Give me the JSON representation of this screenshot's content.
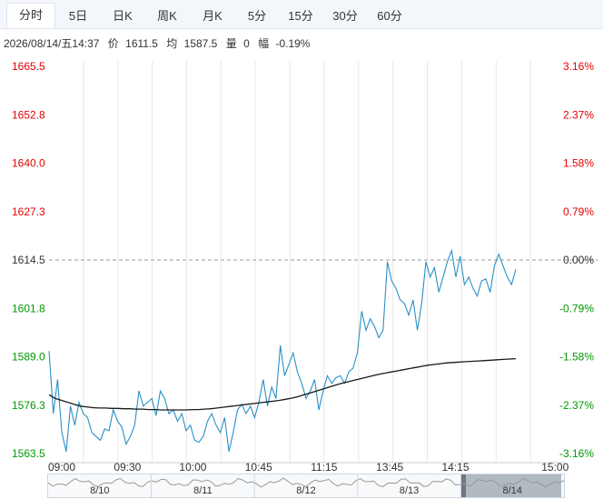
{
  "tabs": [
    {
      "label": "分时",
      "active": true
    },
    {
      "label": "5日",
      "active": false
    },
    {
      "label": "日K",
      "active": false
    },
    {
      "label": "周K",
      "active": false
    },
    {
      "label": "月K",
      "active": false
    },
    {
      "label": "5分",
      "active": false
    },
    {
      "label": "15分",
      "active": false
    },
    {
      "label": "30分",
      "active": false
    },
    {
      "label": "60分",
      "active": false
    }
  ],
  "info": {
    "datetime": "2026/08/14/五14:37",
    "price_label": "价",
    "price": "1611.5",
    "avg_label": "均",
    "avg": "1587.5",
    "volume_label": "量",
    "volume": "0",
    "change_label": "幅",
    "change": "-0.19%"
  },
  "colors": {
    "up": "#e60000",
    "down": "#009900",
    "price_line": "#2a8fc7",
    "avg_line": "#1a1a1a",
    "grid": "#e8e8e8"
  },
  "chart_data": {
    "type": "line",
    "y_ticks": [
      "1665.5",
      "1652.8",
      "1640.0",
      "1627.3",
      "1614.5",
      "1601.8",
      "1589.0",
      "1576.3",
      "1563.5"
    ],
    "pct_ticks": [
      "3.16%",
      "2.37%",
      "1.58%",
      "0.79%",
      "0.00%",
      "-0.79%",
      "-1.58%",
      "-2.37%",
      "-3.16%"
    ],
    "ylim": [
      1563.5,
      1665.5
    ],
    "prev_close": 1614.5,
    "x_ticks": [
      "09:00",
      "09:30",
      "10:00",
      "10:45",
      "11:15",
      "13:45",
      "14:15",
      "15:00"
    ],
    "series": [
      {
        "values": [
          1590.5,
          1574.0,
          1583.0,
          1569.0,
          1564.0,
          1576.0,
          1571.0,
          1577.0,
          1574.0,
          1573.0,
          1569.0,
          1568.0,
          1567.0,
          1570.0,
          1569.5,
          1575.0,
          1572.0,
          1570.5,
          1566.0,
          1568.0,
          1571.0,
          1580.0,
          1576.0,
          1577.0,
          1578.0,
          1573.5,
          1580.0,
          1578.0,
          1574.0,
          1575.0,
          1572.0,
          1574.0,
          1569.5,
          1571.0,
          1567.0,
          1566.5,
          1568.0,
          1572.0,
          1574.0,
          1571.0,
          1569.0,
          1573.0,
          1564.0,
          1569.0,
          1575.0,
          1576.5,
          1574.0,
          1576.0,
          1573.0,
          1577.0,
          1583.0,
          1576.0,
          1581.0,
          1578.0,
          1592.0,
          1584.0,
          1587.0,
          1590.0,
          1585.0,
          1582.0,
          1578.0,
          1580.0,
          1583.0,
          1575.0,
          1580.0,
          1584.0,
          1582.0,
          1583.5,
          1584.0,
          1582.0,
          1585.0,
          1586.0,
          1590.0,
          1601.0,
          1596.0,
          1599.0,
          1597.0,
          1594.0,
          1596.0,
          1614.0,
          1609.0,
          1607.0,
          1604.0,
          1603.0,
          1600.0,
          1604.0,
          1596.0,
          1603.0,
          1614.0,
          1610.0,
          1612.5,
          1606.0,
          1610.0,
          1614.0,
          1617.0,
          1610.0,
          1615.5,
          1608.0,
          1610.0,
          1607.0,
          1605.0,
          1609.0,
          1609.5,
          1606.0,
          1613.0,
          1616.0,
          1613.0,
          1610.0,
          1608.0,
          1612.0
        ]
      },
      {
        "values": [
          1579.0,
          1578.0,
          1577.5,
          1577.0,
          1576.5,
          1576.0,
          1575.8,
          1575.6,
          1575.5,
          1575.5,
          1575.4,
          1575.4,
          1575.3,
          1575.3,
          1575.2,
          1575.2,
          1575.1,
          1575.1,
          1575.0,
          1575.0,
          1575.0,
          1575.0,
          1575.0,
          1575.1,
          1575.1,
          1575.2,
          1575.3,
          1575.5,
          1575.7,
          1575.9,
          1576.1,
          1576.3,
          1576.5,
          1576.7,
          1576.9,
          1577.1,
          1577.3,
          1577.5,
          1577.8,
          1578.1,
          1578.5,
          1579.0,
          1579.5,
          1580.0,
          1580.5,
          1581.0,
          1581.5,
          1582.0,
          1582.4,
          1582.8,
          1583.2,
          1583.6,
          1584.0,
          1584.4,
          1584.7,
          1585.0,
          1585.3,
          1585.6,
          1585.9,
          1586.2,
          1586.5,
          1586.8,
          1587.0,
          1587.2,
          1587.4,
          1587.5,
          1587.6,
          1587.7,
          1587.8,
          1587.9,
          1588.0,
          1588.1,
          1588.2,
          1588.3,
          1588.4,
          1588.5
        ]
      }
    ]
  },
  "navigator": {
    "dates": [
      "8/10",
      "8/11",
      "8/12",
      "8/13",
      "8/14"
    ]
  }
}
